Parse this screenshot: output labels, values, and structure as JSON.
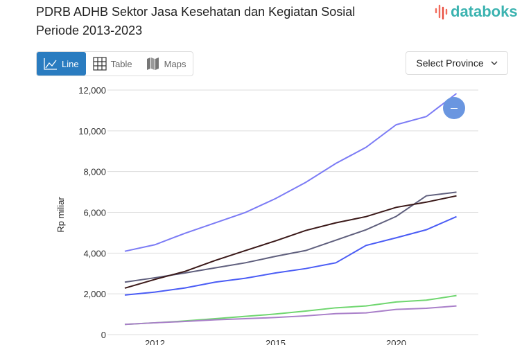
{
  "title": {
    "line1": "PDRB ADHB Sektor Jasa Kesehatan dan Kegiatan Sosial",
    "line2": "Periode 2013-2023"
  },
  "logo": "databoks",
  "tabs": [
    {
      "label": "Line",
      "icon": "line-chart-icon",
      "active": true
    },
    {
      "label": "Table",
      "icon": "table-icon"
    },
    {
      "label": "Maps",
      "icon": "map-icon"
    }
  ],
  "province_select": {
    "label": "Select Province",
    "icon": "chevron-down-icon"
  },
  "fab": {
    "icon": "minus-icon",
    "color": "#6a96e0"
  },
  "chart_data": {
    "type": "line",
    "title": "PDRB ADHB Sektor Jasa Kesehatan dan Kegiatan Sosial Periode 2013-2023",
    "xlabel": "",
    "ylabel": "Rp miliar",
    "ylim": [
      0,
      12000
    ],
    "yticks": [
      0,
      2000,
      4000,
      6000,
      8000,
      10000,
      12000
    ],
    "ytick_labels": [
      "0",
      "2,000",
      "4,000",
      "6,000",
      "8,000",
      "10,000",
      "12,000"
    ],
    "x": [
      0,
      1,
      2,
      3,
      4,
      5,
      6,
      7,
      8,
      9,
      10,
      11
    ],
    "xticks": [
      {
        "at": 1,
        "label": "2012"
      },
      {
        "at": 5,
        "label": "2015"
      },
      {
        "at": 9,
        "label": "2020"
      }
    ],
    "grid": true,
    "series": [
      {
        "color": "#7b7bf5",
        "values": [
          4090,
          4410,
          4975,
          5485,
          5995,
          6675,
          7470,
          8400,
          9190,
          10300,
          10700,
          11830
        ]
      },
      {
        "color": "#5f5f7d",
        "values": [
          2575,
          2790,
          3025,
          3275,
          3525,
          3840,
          4125,
          4635,
          5145,
          5800,
          6810,
          6990
        ]
      },
      {
        "color": "#3a1818",
        "values": [
          2280,
          2710,
          3105,
          3640,
          4125,
          4600,
          5110,
          5485,
          5790,
          6245,
          6500,
          6810
        ]
      },
      {
        "color": "#4a5cf5",
        "values": [
          1940,
          2085,
          2290,
          2575,
          2765,
          3025,
          3240,
          3525,
          4375,
          4750,
          5145,
          5790
        ]
      },
      {
        "color": "#6fd66f",
        "values": [
          500,
          580,
          670,
          780,
          895,
          1010,
          1155,
          1315,
          1405,
          1600,
          1690,
          1915
        ]
      },
      {
        "color": "#a97fc9",
        "values": [
          500,
          580,
          645,
          725,
          780,
          840,
          920,
          1030,
          1065,
          1235,
          1290,
          1405
        ]
      }
    ]
  }
}
